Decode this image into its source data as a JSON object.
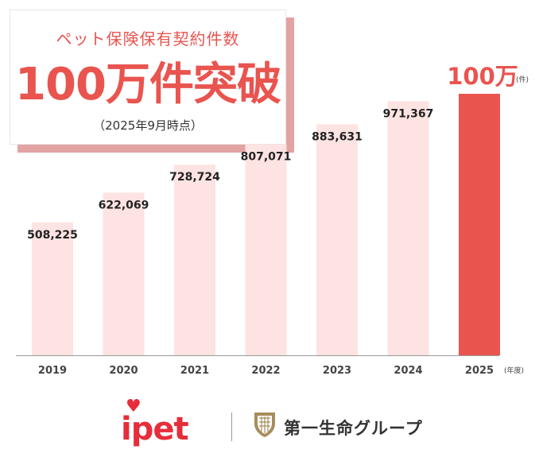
{
  "header": {
    "subtitle": "ペット保険保有契約件数",
    "headline": "100万件突破",
    "note": "（2025年9月時点）"
  },
  "chart_data": {
    "type": "bar",
    "categories": [
      "2019",
      "2020",
      "2021",
      "2022",
      "2023",
      "2024",
      "2025"
    ],
    "values": [
      508225,
      622069,
      728724,
      807071,
      883631,
      971367,
      1000000
    ],
    "labels": [
      "508,225",
      "622,069",
      "728,724",
      "807,071",
      "883,631",
      "971,367",
      "100万"
    ],
    "last_label_unit": "(件)",
    "x_unit": "(年度)",
    "ylim": [
      0,
      1000000
    ],
    "grid": false,
    "colors": {
      "default": "#fde3e2",
      "highlight": "#e9544f"
    }
  },
  "footer": {
    "brand1": "ipet",
    "brand2": "第一生命グループ"
  }
}
